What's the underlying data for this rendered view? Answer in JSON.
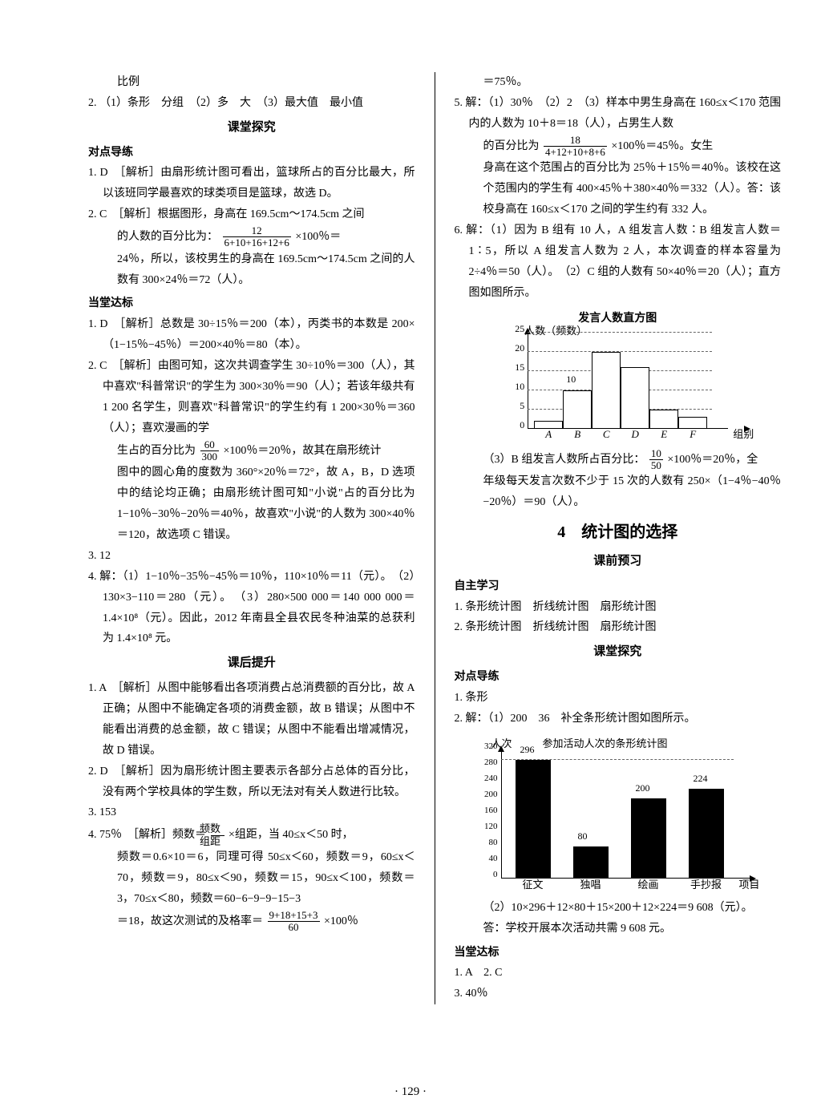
{
  "page_number": "· 129 ·",
  "left": {
    "l1": "比例",
    "l2": "2. （1）条形　分组　（2）多　大　（3）最大值　最小值",
    "h1": "课堂探究",
    "h1a": "对点导练",
    "l3": "1. D　［解析］由扇形统计图可看出，篮球所占的百分比最大，所以该班同学最喜欢的球类项目是篮球，故选 D。",
    "l4a": "2. C　［解析］根据图形，身高在 169.5cm～174.5cm 之间",
    "l4b_pre": "的人数的百分比为：",
    "l4b_num": "12",
    "l4b_den": "6+10+16+12+6",
    "l4b_post": "×100％＝",
    "l4c": "24％，所以，该校男生的身高在 169.5cm～174.5cm 之间的人数有 300×24％＝72（人）。",
    "h1b": "当堂达标",
    "l5": "1. D　［解析］总数是 30÷15％＝200（本），丙类书的本数是 200×（1−15％−45％）＝200×40％＝80（本）。",
    "l6a": "2. C　［解析］由图可知，这次共调查学生 30÷10％＝300（人），其中喜欢\"科普常识\"的学生为 300×30％＝90（人）；若该年级共有 1 200 名学生，则喜欢\"科普常识\"的学生约有 1 200×30％＝360（人）；喜欢漫画的学",
    "l6b_pre": "生占的百分比为",
    "l6b_num": "60",
    "l6b_den": "300",
    "l6b_post": "×100％＝20％，故其在扇形统计",
    "l6c": "图中的圆心角的度数为 360°×20％＝72°，故 A，B，D 选项中的结论均正确；由扇形统计图可知\"小说\"占的百分比为 1−10％−30％−20％＝40％，故喜欢\"小说\"的人数为 300×40％＝120，故选项 C 错误。",
    "l7": "3. 12",
    "l8": "4. 解：（1）1−10％−35％−45％＝10％，110×10％＝11（元）。　（2）130×3−110＝280（元）。　（3）280×500 000＝140 000 000＝1.4×10⁸（元）。因此，2012 年南县全县农民冬种油菜的总获利为 1.4×10⁸ 元。",
    "h2": "课后提升",
    "l9": "1. A　［解析］从图中能够看出各项消费占总消费额的百分比，故 A 正确；从图中不能确定各项的消费金额，故 B 错误；从图中不能看出消费的总金额，故 C 错误；从图中不能看出增减情况，故 D 错误。",
    "l10": "2. D　［解析］因为扇形统计图主要表示各部分占总体的百分比，没有两个学校具体的学生数，所以无法对有关人数进行比较。",
    "l11": "3. 153",
    "l12a_pre": "4. 75％　［解析］频数＝",
    "l12a_num": "频数",
    "l12a_den": "组距",
    "l12a_post": "×组距，当 40≤x＜50 时，",
    "l12b": "频数＝0.6×10＝6，同理可得 50≤x＜60，频数＝9，60≤x＜70，频数＝9，80≤x＜90，频数＝15，90≤x＜100，频数＝3，70≤x＜80，频数＝60−6−9−9−15−3",
    "l12c_pre": "＝18，故这次测试的及格率＝",
    "l12c_num": "9+18+15+3",
    "l12c_den": "60",
    "l12c_post": "×100％"
  },
  "right": {
    "r1": "＝75％。",
    "r2": "5. 解：（1）30％　（2）2　（3）样本中男生身高在 160≤x＜170 范围内的人数为 10＋8＝18（人），占男生人数",
    "r2b_pre": "的百分比为",
    "r2b_num": "18",
    "r2b_den": "4+12+10+8+6",
    "r2b_post": "×100％＝45％。女生",
    "r2c": "身高在这个范围占的百分比为 25％＋15％＝40％。该校在这个范围内的学生有 400×45％＋380×40％＝332（人）。答：该校身高在 160≤x＜170 之间的学生约有 332 人。",
    "r3": "6. 解：（1）因为 B 组有 10 人，A 组发言人数∶B 组发言人数＝1∶5，所以 A 组发言人数为 2 人，本次调查的样本容量为 2÷4％＝50（人）。　（2）C 组的人数有 50×40％＝20（人）；直方图如图所示。",
    "chart1": {
      "title": "发言人数直方图",
      "ylabel": "人数（频数）",
      "xlabel": "组别",
      "ymax": 25,
      "ytick_step": 5,
      "yticks": [
        "0",
        "5",
        "10",
        "15",
        "20",
        "25"
      ],
      "categories": [
        "A",
        "B",
        "C",
        "D",
        "E",
        "F"
      ],
      "values": [
        2,
        10,
        20,
        16,
        5,
        3
      ],
      "bar_fill": "#ffffff",
      "bar_border": "#000000",
      "grid_color": "#666666",
      "bar_label_index": 1,
      "bar_label_text": "10"
    },
    "r4_pre": "（3）B 组发言人数所占百分比：",
    "r4_num": "10",
    "r4_den": "50",
    "r4_post": "×100％＝20％，全",
    "r4b": "年级每天发言次数不少于 15 次的人数有 250×（1−4％−40％−20％）＝90（人）。",
    "big_title": "4　统计图的选择",
    "h3": "课前预习",
    "h3a": "自主学习",
    "r5": "1. 条形统计图　折线统计图　扇形统计图",
    "r6": "2. 条形统计图　折线统计图　扇形统计图",
    "h4": "课堂探究",
    "h4a": "对点导练",
    "r7": "1. 条形",
    "r8": "2. 解：（1）200　36　补全条形统计图如图所示。",
    "chart2": {
      "title": "参加活动人次的条形统计图",
      "ylabel": "人次",
      "xlabel": "项目",
      "ymax": 320,
      "ytick_step": 40,
      "yticks": [
        "0",
        "40",
        "80",
        "120",
        "160",
        "200",
        "240",
        "280",
        "320"
      ],
      "categories": [
        "征文",
        "独唱",
        "绘画",
        "手抄报"
      ],
      "values": [
        296,
        80,
        200,
        224
      ],
      "bar_labels": [
        "296",
        "80",
        "200",
        "224"
      ],
      "bar_fill": "#000000",
      "grid_color": "#666666"
    },
    "r9": "（2）10×296＋12×80＋15×200＋12×224＝9 608（元）。",
    "r9b": "答：学校开展本次活动共需 9 608 元。",
    "h5": "当堂达标",
    "r10": "1. A　2. C",
    "r11": "3. 40％"
  }
}
